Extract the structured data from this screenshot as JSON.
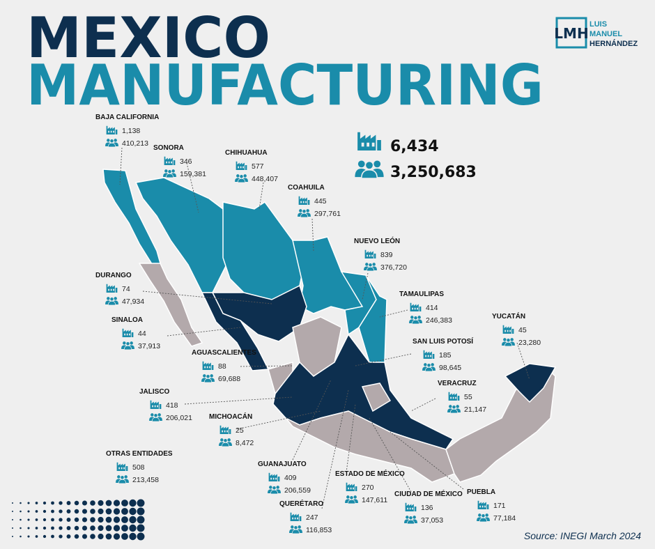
{
  "header": {
    "title_line1": "MEXICO",
    "title_line2": "MANUFACTURING"
  },
  "logo": {
    "mark": "LMH",
    "name_lines": [
      "LUIS",
      "MANUEL",
      "HERNÁNDEZ"
    ]
  },
  "totals": {
    "factories": "6,434",
    "workers": "3,250,683"
  },
  "states": [
    {
      "name": "BAJA CALIFORNIA",
      "factories": "1,138",
      "workers": "410,213"
    },
    {
      "name": "SONORA",
      "factories": "346",
      "workers": "159,381"
    },
    {
      "name": "CHIHUAHUA",
      "factories": "577",
      "workers": "448,407"
    },
    {
      "name": "COAHUILA",
      "factories": "445",
      "workers": "297,761"
    },
    {
      "name": "NUEVO LEÓN",
      "factories": "839",
      "workers": "376,720"
    },
    {
      "name": "TAMAULIPAS",
      "factories": "414",
      "workers": "246,383"
    },
    {
      "name": "YUCATÁN",
      "factories": "45",
      "workers": "23,280"
    },
    {
      "name": "DURANGO",
      "factories": "74",
      "workers": "47,934"
    },
    {
      "name": "SINALOA",
      "factories": "44",
      "workers": "37,913"
    },
    {
      "name": "AGUASCALIENTES",
      "factories": "88",
      "workers": "69,688"
    },
    {
      "name": "SAN LUIS POTOSÍ",
      "factories": "185",
      "workers": "98,645"
    },
    {
      "name": "VERACRUZ",
      "factories": "55",
      "workers": "21,147"
    },
    {
      "name": "JALISCO",
      "factories": "418",
      "workers": "206,021"
    },
    {
      "name": "MICHOACÁN",
      "factories": "25",
      "workers": "8,472"
    },
    {
      "name": "OTRAS ENTIDADES",
      "factories": "508",
      "workers": "213,458"
    },
    {
      "name": "GUANAJUATO",
      "factories": "409",
      "workers": "206,559"
    },
    {
      "name": "ESTADO DE MÉXICO",
      "factories": "270",
      "workers": "147,611"
    },
    {
      "name": "CIUDAD DE MÉXICO",
      "factories": "136",
      "workers": "37,053"
    },
    {
      "name": "PUEBLA",
      "factories": "171",
      "workers": "77,184"
    },
    {
      "name": "QUERÉTARO",
      "factories": "247",
      "workers": "116,853"
    }
  ],
  "source": "Source: INEGI March 2024"
}
